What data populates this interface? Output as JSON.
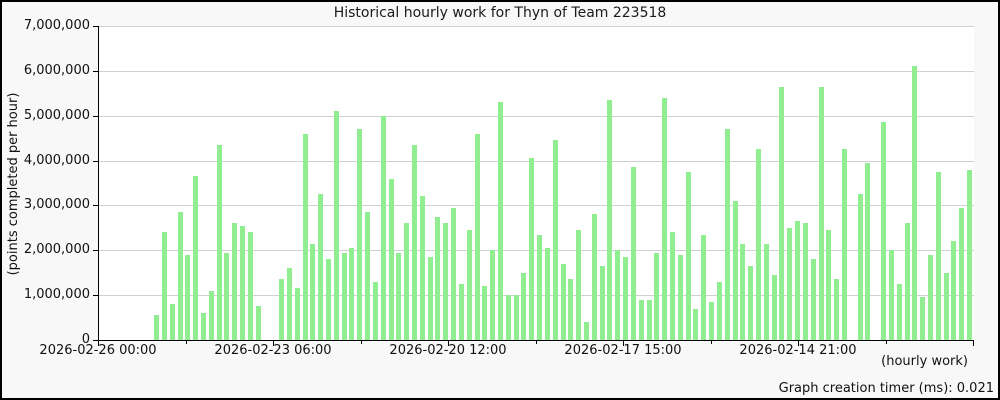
{
  "title": "Historical hourly work for Thyn of Team 223518",
  "legend_note": "(hourly work)",
  "footer": "Graph creation timer (ms): 0.021",
  "colors": {
    "bar": "#90EE90",
    "grid": "#d0d0d0",
    "axis": "#000000",
    "background": "#f8f8f8",
    "plot_background": "#ffffff",
    "text": "#111111"
  },
  "chart_data": {
    "type": "bar",
    "title": "Historical hourly work for Thyn of Team 223518",
    "ylabel": "(points completed per hour)",
    "ylim": [
      0,
      7000000
    ],
    "y_tick_interval": 1000000,
    "y_tick_labels": [
      "0",
      "1,000,000",
      "2,000,000",
      "3,000,000",
      "4,000,000",
      "5,000,000",
      "6,000,000",
      "7,000,000"
    ],
    "x_tick_labels": [
      "2026-02-26 00:00",
      "2026-02-23 06:00",
      "2026-02-20 12:00",
      "2026-02-17 15:00",
      "2026-02-14 21:00"
    ],
    "grid": true,
    "legend_position": "bottom-right",
    "values": [
      550000,
      2400000,
      800000,
      2850000,
      1900000,
      3650000,
      600000,
      1100000,
      4350000,
      1950000,
      2600000,
      2550000,
      2400000,
      750000,
      0,
      0,
      1350000,
      1600000,
      1150000,
      4600000,
      2150000,
      3250000,
      1800000,
      5100000,
      1950000,
      2050000,
      4700000,
      2850000,
      1300000,
      5000000,
      3600000,
      1950000,
      2600000,
      4350000,
      3200000,
      1850000,
      2750000,
      2600000,
      2950000,
      1250000,
      2450000,
      4600000,
      1200000,
      2000000,
      5300000,
      1000000,
      1000000,
      1500000,
      4050000,
      2350000,
      2050000,
      4450000,
      1700000,
      1350000,
      2450000,
      400000,
      2800000,
      1650000,
      5350000,
      2000000,
      1850000,
      3850000,
      900000,
      900000,
      1950000,
      5400000,
      2400000,
      1900000,
      3750000,
      700000,
      2350000,
      850000,
      1300000,
      4700000,
      3100000,
      2150000,
      1650000,
      4250000,
      2150000,
      1450000,
      5650000,
      2500000,
      2650000,
      2600000,
      1800000,
      5650000,
      2450000,
      1350000,
      4250000,
      0,
      3250000,
      3950000,
      0,
      4850000,
      2000000,
      1250000,
      2600000,
      6100000,
      950000,
      1900000,
      3750000,
      1500000,
      2200000,
      2950000,
      3800000
    ]
  }
}
